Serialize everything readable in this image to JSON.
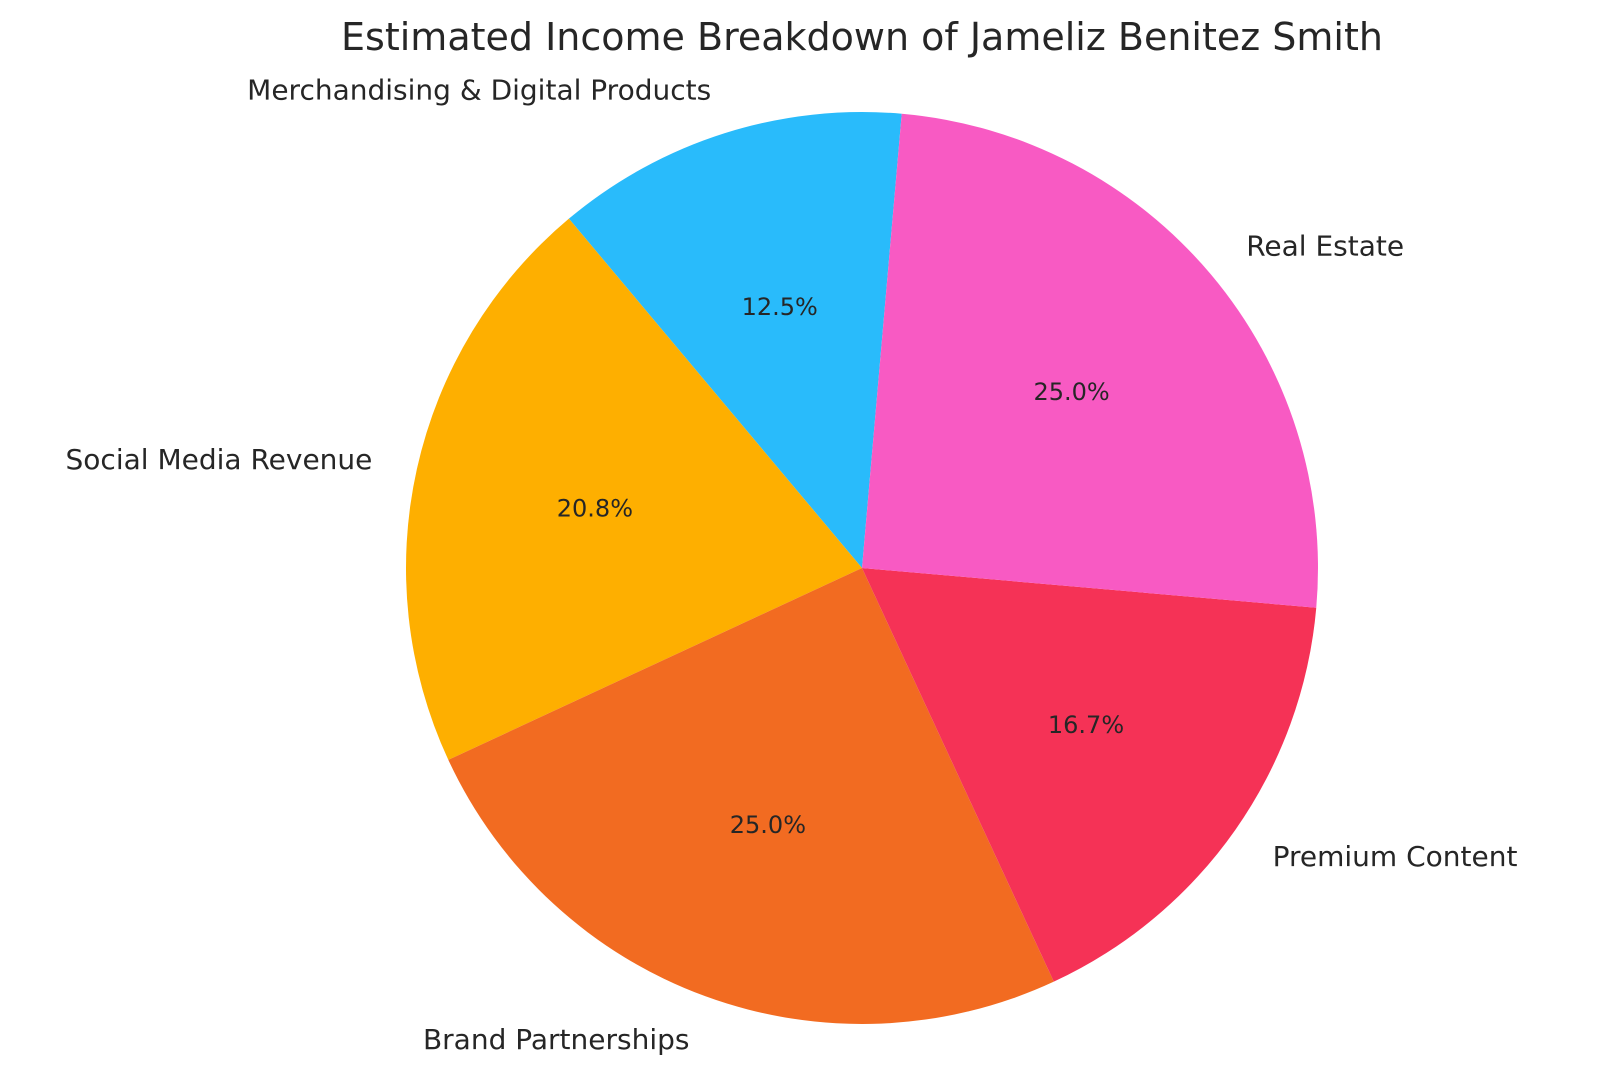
{
  "chart_data": {
    "type": "pie",
    "title": "Estimated Income Breakdown of Jameliz Benitez Smith",
    "start_angle_deg": 85,
    "direction": "counterclockwise",
    "slices": [
      {
        "label": "Merchandising & Digital Products",
        "value": 12.5,
        "pct_label": "12.5%",
        "color": "#29BBFB"
      },
      {
        "label": "Social Media Revenue",
        "value": 20.8,
        "pct_label": "20.8%",
        "color": "#FEAF00"
      },
      {
        "label": "Brand Partnerships",
        "value": 25.0,
        "pct_label": "25.0%",
        "color": "#F26B21"
      },
      {
        "label": "Premium Content",
        "value": 16.7,
        "pct_label": "16.7%",
        "color": "#F53256"
      },
      {
        "label": "Real Estate",
        "value": 25.0,
        "pct_label": "25.0%",
        "color": "#F85AC3"
      }
    ]
  }
}
